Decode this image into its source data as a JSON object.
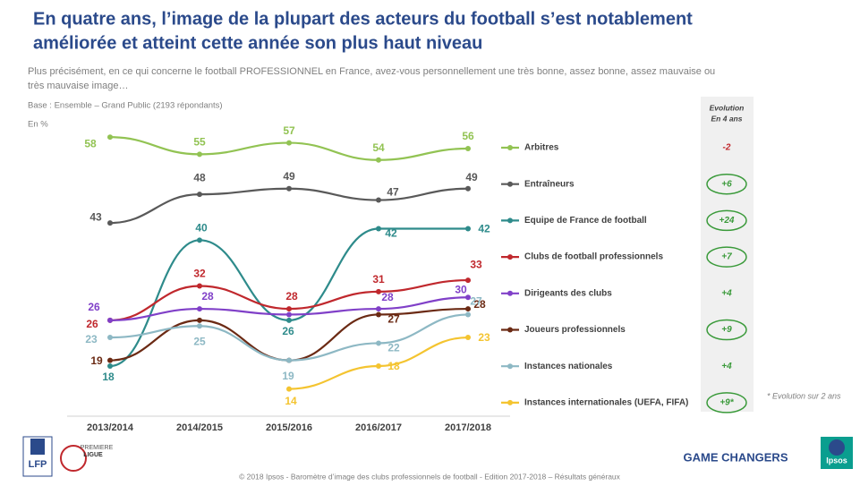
{
  "chart_data": {
    "type": "line",
    "title": [
      "En quatre ans, l’image de la plupart des acteurs du football s’est notablement",
      "améliorée et atteint cette année son plus haut niveau"
    ],
    "subtitle": [
      "Plus précisément, en ce qui concerne le football PROFESSIONNEL en France, avez-vous personnellement une très bonne, assez bonne, assez mauvaise ou",
      "très mauvaise image…"
    ],
    "base": "Base : Ensemble – Grand Public  (2193 répondants)",
    "unit": "En %",
    "evolution_header": [
      "Evolution",
      "En 4 ans"
    ],
    "note": "* Evolution sur 2 ans",
    "categories": [
      "2013/2014",
      "2014/2015",
      "2015/2016",
      "2016/2017",
      "2017/2018"
    ],
    "ylim": [
      13,
      61
    ],
    "series": [
      {
        "name": "Arbitres",
        "color": "#92c353",
        "values": [
          58,
          55,
          57,
          54,
          56
        ],
        "evolution": "-2",
        "circled": false
      },
      {
        "name": "Entraîneurs",
        "color": "#595959",
        "values": [
          43,
          48,
          49,
          47,
          49
        ],
        "evolution": "+6",
        "circled": true
      },
      {
        "name": "Equipe de France de football",
        "color": "#2e8b8b",
        "values": [
          18,
          40,
          26,
          42,
          42
        ],
        "evolution": "+24",
        "circled": true
      },
      {
        "name": "Clubs de football professionnels",
        "color": "#c0282d",
        "values": [
          26,
          32,
          28,
          31,
          33
        ],
        "evolution": "+7",
        "circled": true
      },
      {
        "name": "Dirigeants des clubs",
        "color": "#8040c8",
        "values": [
          26,
          28,
          27,
          28,
          30
        ],
        "value_labels": [
          "26",
          "28",
          null,
          "28",
          "30"
        ],
        "evolution": "+4",
        "circled": false
      },
      {
        "name": "Joueurs professionnels",
        "color": "#6b2a14",
        "values": [
          19,
          26,
          19,
          27,
          28
        ],
        "value_labels": [
          "19",
          null,
          null,
          "27",
          "28"
        ],
        "evolution": "+9",
        "circled": true
      },
      {
        "name": "Instances nationales",
        "color": "#8db8c4",
        "values": [
          23,
          25,
          19,
          22,
          27
        ],
        "evolution": "+4",
        "circled": false
      },
      {
        "name": "Instances internationales (UEFA, FIFA)",
        "color": "#f4c430",
        "values": [
          null,
          null,
          14,
          18,
          23
        ],
        "evolution": "+9*",
        "circled": true
      }
    ]
  },
  "footer": "© 2018 Ipsos - Baromètre d’image des clubs professionnels de football  - Edition 2017-2018 – Résultats généraux",
  "logos": {
    "lfp": "LFP",
    "ligue": [
      "PREMIERE",
      "LIGUE"
    ],
    "brand": "GAME CHANGERS",
    "ipsos": "Ipsos"
  }
}
